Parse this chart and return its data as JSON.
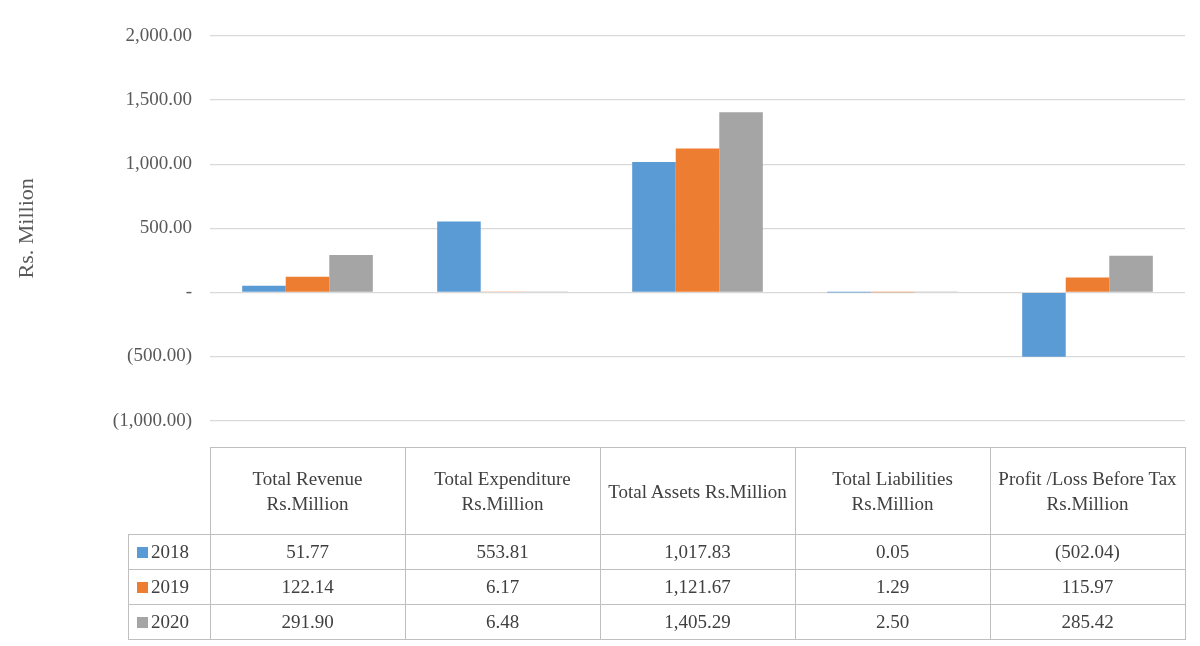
{
  "chart_data": {
    "type": "bar",
    "ylabel": "Rs. Million",
    "categories": [
      "Total Revenue Rs.Million",
      "Total Expenditure Rs.Million",
      "Total Assets Rs.Million",
      "Total Liabilities Rs.Million",
      "Profit /Loss Before Tax Rs.Million"
    ],
    "series": [
      {
        "name": "2018",
        "color": "#5b9bd5",
        "values": [
          51.77,
          553.81,
          1017.83,
          0.05,
          -502.04
        ],
        "value_labels": [
          "51.77",
          "553.81",
          "1,017.83",
          "0.05",
          "(502.04)"
        ]
      },
      {
        "name": "2019",
        "color": "#ed7d31",
        "values": [
          122.14,
          6.17,
          1121.67,
          1.29,
          115.97
        ],
        "value_labels": [
          "122.14",
          "6.17",
          "1,121.67",
          "1.29",
          "115.97"
        ]
      },
      {
        "name": "2020",
        "color": "#a5a5a5",
        "values": [
          291.9,
          6.48,
          1405.29,
          2.5,
          285.42
        ],
        "value_labels": [
          "291.90",
          "6.48",
          "1,405.29",
          "2.50",
          "285.42"
        ]
      }
    ],
    "ylim": [
      -1000,
      2000
    ],
    "yticks": [
      {
        "value": -1000,
        "label": "(1,000.00)"
      },
      {
        "value": -500,
        "label": "(500.00)"
      },
      {
        "value": 0,
        "label": "-"
      },
      {
        "value": 500,
        "label": "500.00"
      },
      {
        "value": 1000,
        "label": "1,000.00"
      },
      {
        "value": 1500,
        "label": "1,500.00"
      },
      {
        "value": 2000,
        "label": "2,000.00"
      }
    ],
    "grid": "y",
    "legend": "bottom"
  }
}
